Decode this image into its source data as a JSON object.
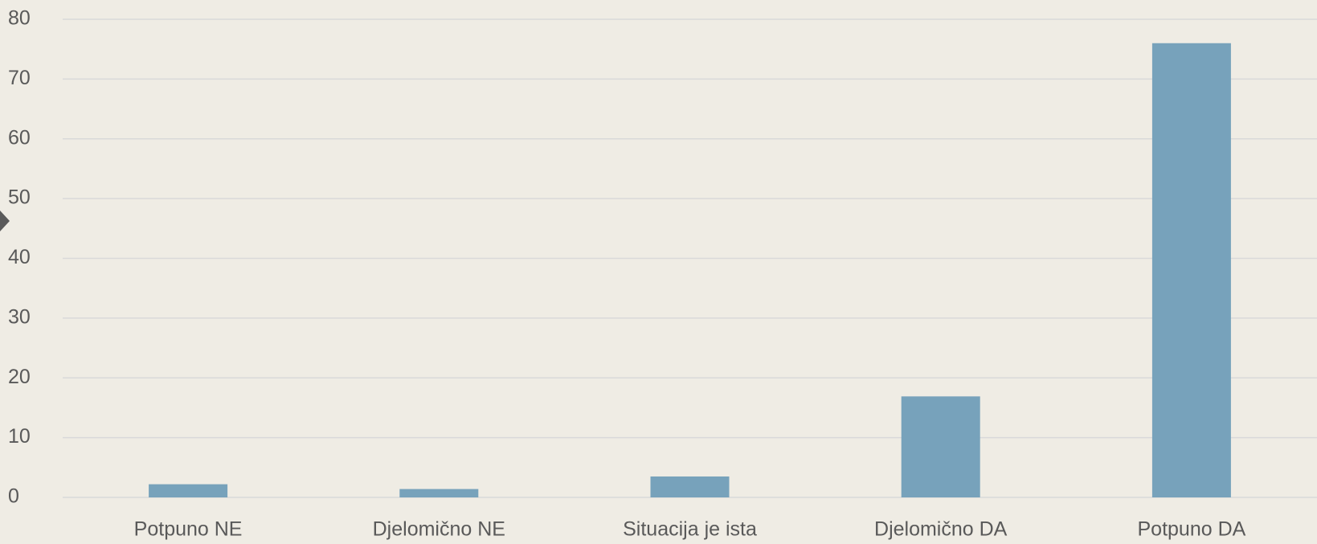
{
  "chart_data": {
    "type": "bar",
    "categories": [
      "Potpuno NE",
      "Djelomično NE",
      "Situacija je ista",
      "Djelomično DA",
      "Potpuno DA"
    ],
    "values": [
      2.2,
      1.4,
      3.5,
      16.9,
      76
    ],
    "color": "#77a2bb",
    "ylim": [
      0,
      80
    ],
    "yticks": [
      0,
      10,
      20,
      30,
      40,
      50,
      60,
      70,
      80
    ],
    "grid": true
  }
}
